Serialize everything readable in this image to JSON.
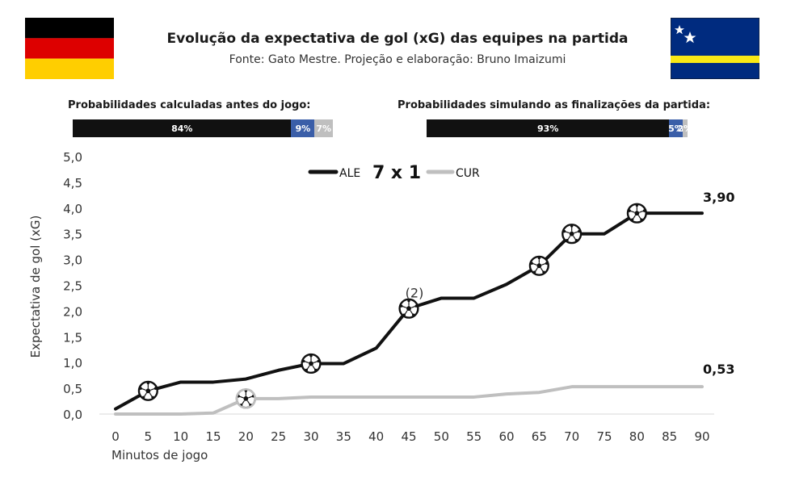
{
  "header": {
    "title": "Evolução da expectativa de gol (xG) das equipes na partida",
    "subtitle": "Fonte: Gato Mestre. Projeção e elaboração: Bruno Imaizumi"
  },
  "flags": {
    "left": {
      "stripes": [
        "#000000",
        "#DD0000",
        "#FFCE00"
      ]
    },
    "right": {
      "field": "#002B7F",
      "stripe": "#F9E814",
      "stars": "#ffffff"
    }
  },
  "probabilities": {
    "before": {
      "label": "Probabilidades calculadas antes do jogo:",
      "segments": [
        {
          "text": "84%",
          "value": 84,
          "color": "#111111"
        },
        {
          "text": "9%",
          "value": 9,
          "color": "#3a5ea8"
        },
        {
          "text": "7%",
          "value": 7,
          "color": "#bfbfbf"
        }
      ]
    },
    "simulated": {
      "label": "Probabilidades simulando as finalizações da partida:",
      "segments": [
        {
          "text": "93%",
          "value": 93,
          "color": "#111111"
        },
        {
          "text": "5%",
          "value": 5,
          "color": "#3a5ea8"
        },
        {
          "text": "2%",
          "value": 2,
          "color": "#bfbfbf"
        }
      ]
    }
  },
  "chart_data": {
    "type": "line",
    "score": "7 x 1",
    "xlabel": "Minutos de jogo",
    "ylabel": "Expectativa de gol (xG)",
    "xlim": [
      0,
      90
    ],
    "ylim": [
      0,
      5
    ],
    "x_ticks": [
      0,
      5,
      10,
      15,
      20,
      25,
      30,
      35,
      40,
      45,
      50,
      55,
      60,
      65,
      70,
      75,
      80,
      85,
      90
    ],
    "y_ticks": [
      "0,0",
      "0,5",
      "1,0",
      "1,5",
      "2,0",
      "2,5",
      "3,0",
      "3,5",
      "4,0",
      "4,5",
      "5,0"
    ],
    "annotation": {
      "text": "(2)",
      "x": 45,
      "y": 2.3
    },
    "series": [
      {
        "name": "ALE",
        "color": "#111111",
        "end_label": "3,90",
        "x": [
          0,
          5,
          10,
          15,
          20,
          25,
          30,
          35,
          40,
          45,
          50,
          55,
          60,
          65,
          70,
          75,
          80,
          85,
          90
        ],
        "y": [
          0.1,
          0.45,
          0.62,
          0.62,
          0.68,
          0.85,
          0.98,
          0.98,
          1.28,
          2.05,
          2.25,
          2.25,
          2.52,
          2.88,
          3.5,
          3.5,
          3.9,
          3.9,
          3.9
        ],
        "goals": [
          5,
          30,
          45,
          65,
          70,
          80
        ]
      },
      {
        "name": "CUR",
        "color": "#bfbfbf",
        "end_label": "0,53",
        "x": [
          0,
          5,
          10,
          15,
          20,
          25,
          30,
          35,
          40,
          45,
          50,
          55,
          60,
          65,
          70,
          75,
          80,
          85,
          90
        ],
        "y": [
          0,
          0,
          0,
          0.02,
          0.3,
          0.3,
          0.33,
          0.33,
          0.33,
          0.33,
          0.33,
          0.33,
          0.39,
          0.42,
          0.53,
          0.53,
          0.53,
          0.53,
          0.53
        ],
        "goals": [
          20
        ]
      }
    ]
  }
}
